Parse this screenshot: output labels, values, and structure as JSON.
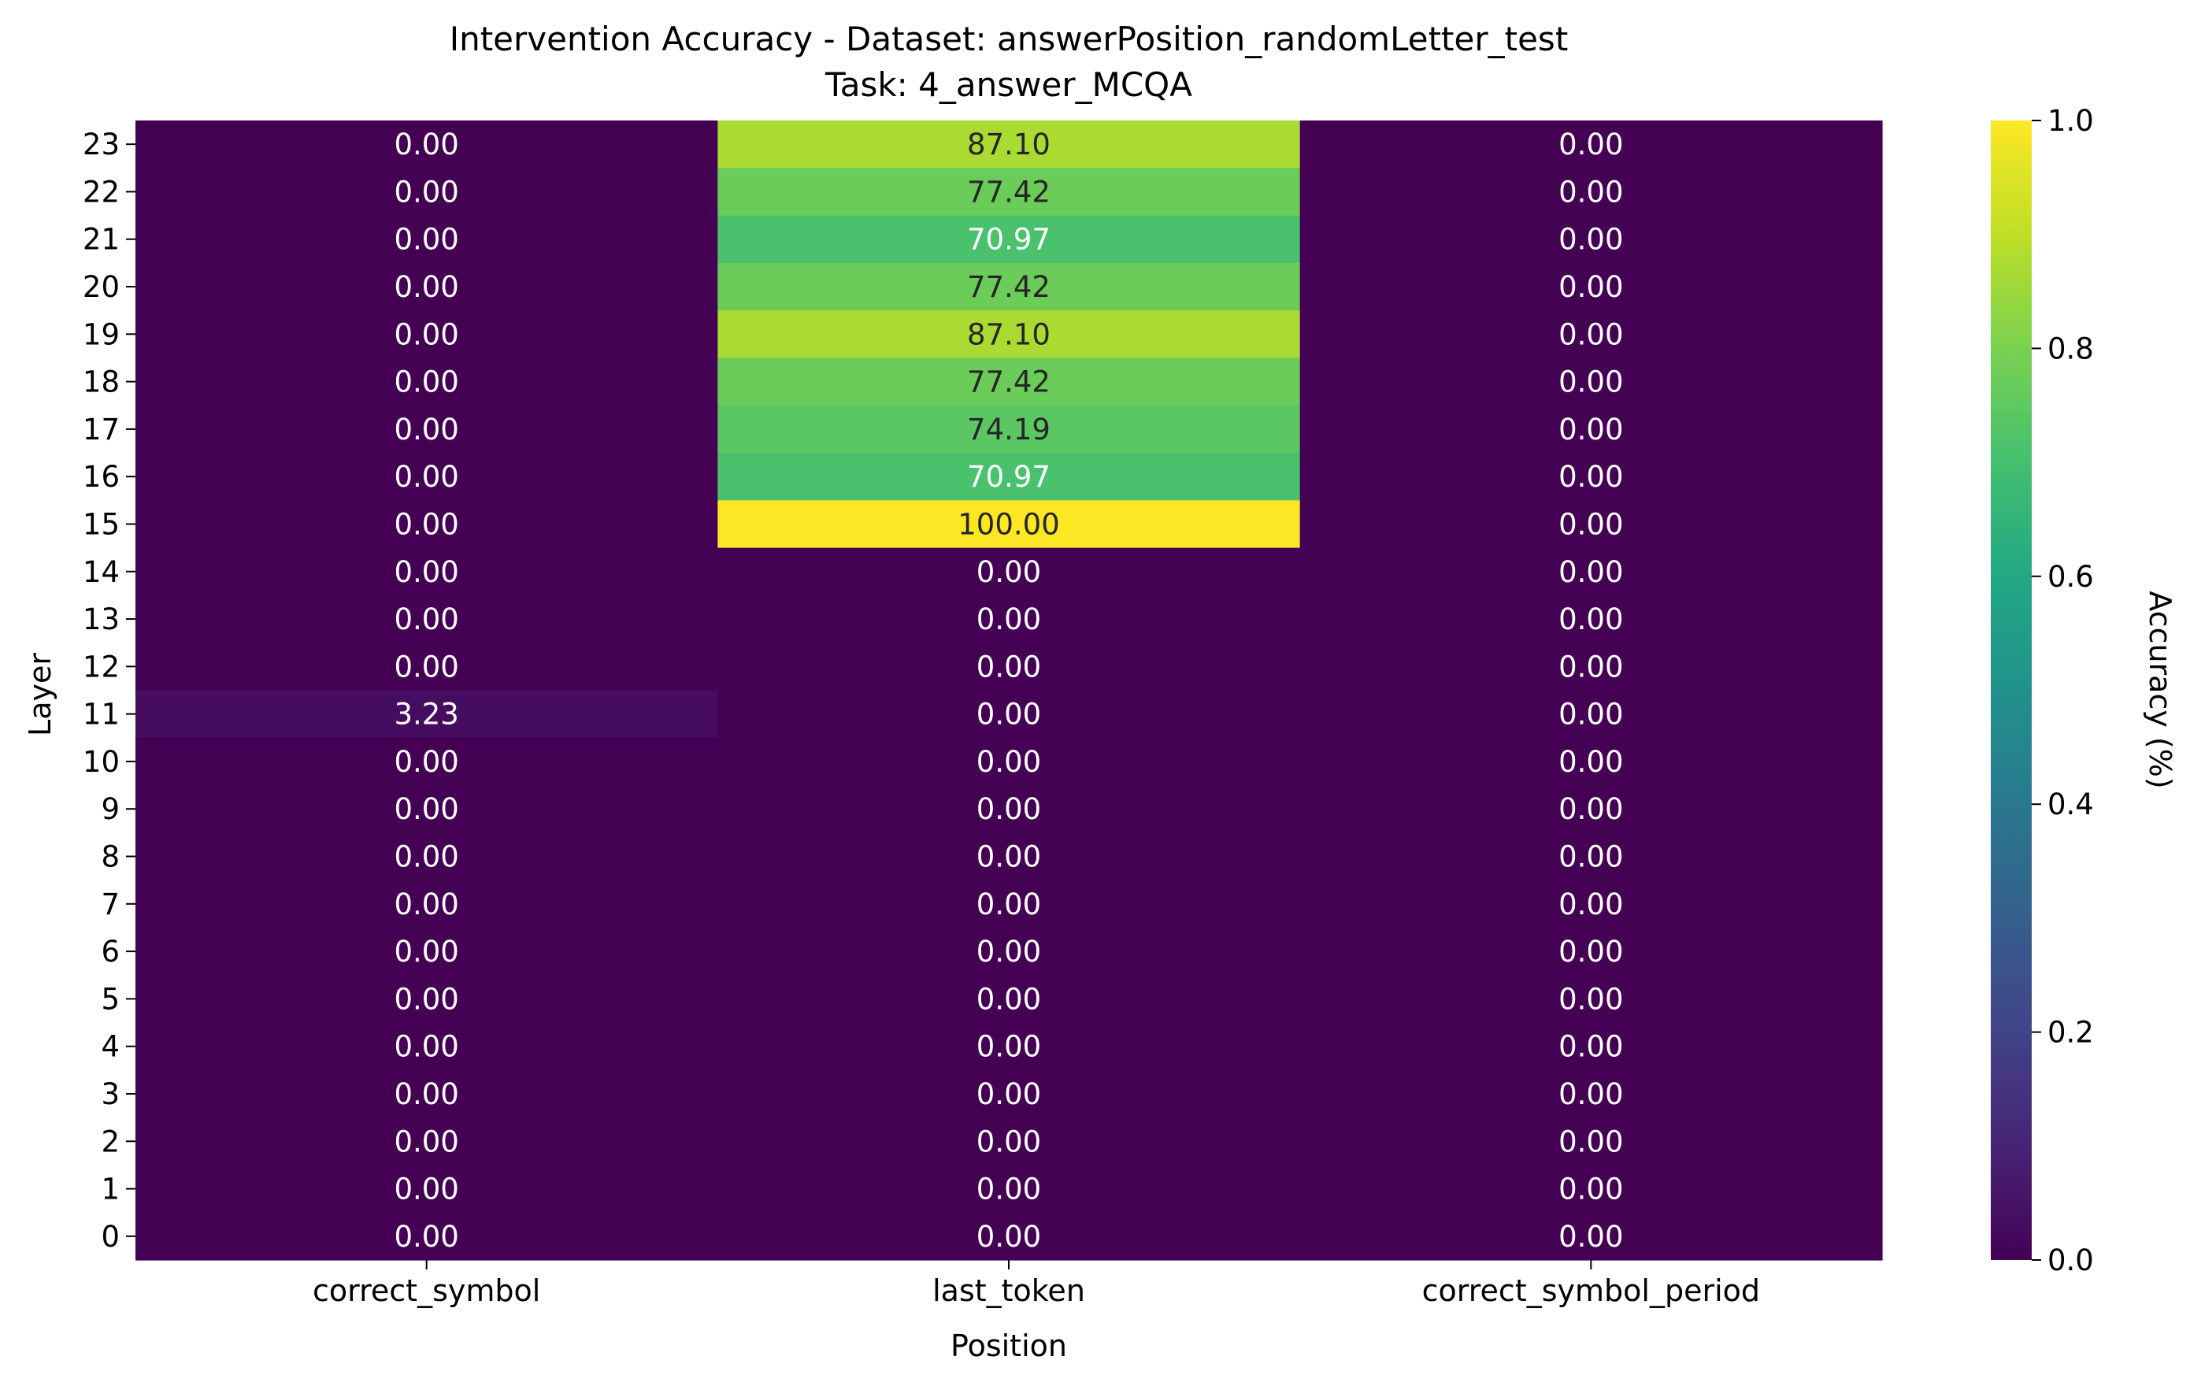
{
  "chart_data": {
    "type": "heatmap",
    "title_line1": "Intervention Accuracy - Dataset: answerPosition_randomLetter_test",
    "title_line2": "Task: 4_answer_MCQA",
    "xlabel": "Position",
    "ylabel": "Layer",
    "colorbar_label": "Accuracy (%)",
    "colormap": "viridis",
    "vmin": 0.0,
    "vmax": 1.0,
    "colorbar_ticks": [
      "0.0",
      "0.2",
      "0.4",
      "0.6",
      "0.8",
      "1.0"
    ],
    "columns": [
      "correct_symbol",
      "last_token",
      "correct_symbol_period"
    ],
    "rows": [
      "23",
      "22",
      "21",
      "20",
      "19",
      "18",
      "17",
      "16",
      "15",
      "14",
      "13",
      "12",
      "11",
      "10",
      "9",
      "8",
      "7",
      "6",
      "5",
      "4",
      "3",
      "2",
      "1",
      "0"
    ],
    "values": [
      [
        0.0,
        87.1,
        0.0
      ],
      [
        0.0,
        77.42,
        0.0
      ],
      [
        0.0,
        70.97,
        0.0
      ],
      [
        0.0,
        77.42,
        0.0
      ],
      [
        0.0,
        87.1,
        0.0
      ],
      [
        0.0,
        77.42,
        0.0
      ],
      [
        0.0,
        74.19,
        0.0
      ],
      [
        0.0,
        70.97,
        0.0
      ],
      [
        0.0,
        100.0,
        0.0
      ],
      [
        0.0,
        0.0,
        0.0
      ],
      [
        0.0,
        0.0,
        0.0
      ],
      [
        0.0,
        0.0,
        0.0
      ],
      [
        3.23,
        0.0,
        0.0
      ],
      [
        0.0,
        0.0,
        0.0
      ],
      [
        0.0,
        0.0,
        0.0
      ],
      [
        0.0,
        0.0,
        0.0
      ],
      [
        0.0,
        0.0,
        0.0
      ],
      [
        0.0,
        0.0,
        0.0
      ],
      [
        0.0,
        0.0,
        0.0
      ],
      [
        0.0,
        0.0,
        0.0
      ],
      [
        0.0,
        0.0,
        0.0
      ],
      [
        0.0,
        0.0,
        0.0
      ],
      [
        0.0,
        0.0,
        0.0
      ],
      [
        0.0,
        0.0,
        0.0
      ]
    ]
  }
}
